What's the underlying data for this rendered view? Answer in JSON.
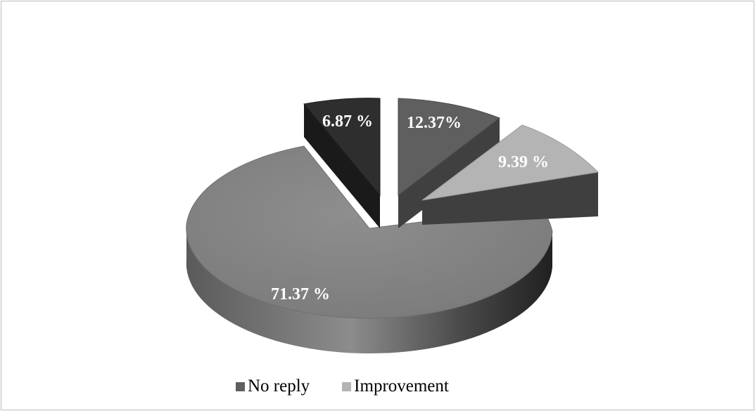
{
  "chart_data": {
    "type": "pie",
    "title": "",
    "style": "3d-exploded",
    "slices": [
      {
        "label": "6.87 %",
        "value": 6.87,
        "color": "#2e2e2e"
      },
      {
        "label": "12.37%",
        "value": 12.37,
        "color": "#5f5f5f"
      },
      {
        "label": "9.39 %",
        "value": 9.39,
        "color": "#b4b4b4"
      },
      {
        "label": "71.37 %",
        "value": 71.37,
        "color": "#808080"
      }
    ],
    "legend": {
      "placement": "bottom",
      "entries": [
        {
          "label": "No reply",
          "color": "#5f5f5f"
        },
        {
          "label": "Improvement",
          "color": "#b4b4b4"
        }
      ]
    }
  }
}
